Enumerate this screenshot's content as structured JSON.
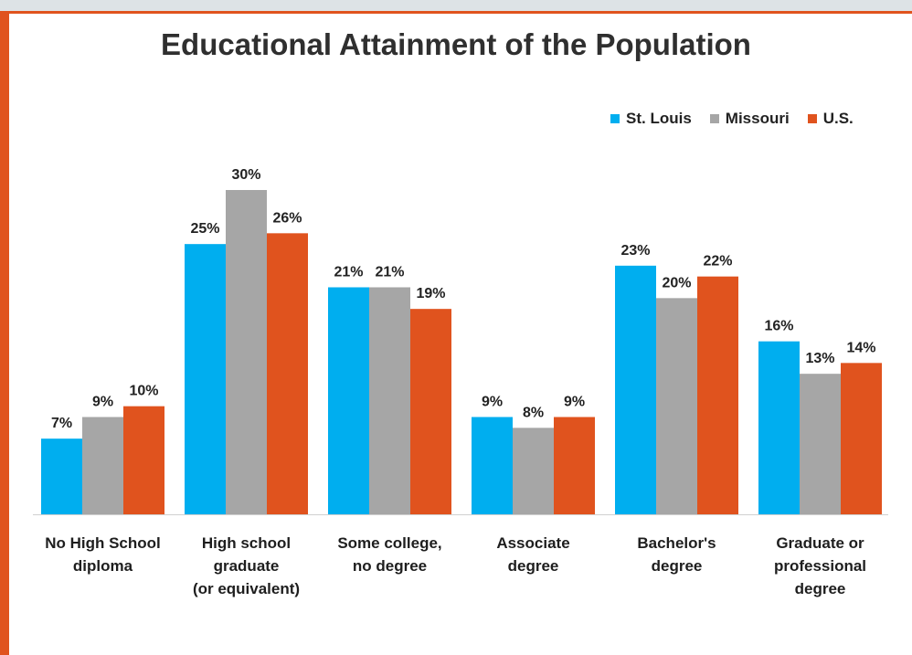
{
  "chart_data": {
    "type": "bar",
    "title": "Educational Attainment of the Population",
    "categories": [
      [
        "No High School",
        "diploma"
      ],
      [
        "High school",
        "graduate",
        "(or equivalent)"
      ],
      [
        "Some college,",
        "no degree"
      ],
      [
        "Associate",
        "degree"
      ],
      [
        "Bachelor's",
        "degree"
      ],
      [
        "Graduate or",
        "professional",
        "degree"
      ]
    ],
    "series": [
      {
        "name": "St. Louis",
        "color": "#00aeef",
        "values": [
          7,
          25,
          21,
          9,
          23,
          16
        ],
        "labels": [
          "7%",
          "25%",
          "21%",
          "9%",
          "23%",
          "16%"
        ]
      },
      {
        "name": "Missouri",
        "color": "#a6a6a6",
        "values": [
          9,
          30,
          21,
          8,
          20,
          13
        ],
        "labels": [
          "9%",
          "30%",
          "21%",
          "8%",
          "20%",
          "13%"
        ]
      },
      {
        "name": "U.S.",
        "color": "#e0531e",
        "values": [
          10,
          26,
          19,
          9,
          22,
          14
        ],
        "labels": [
          "10%",
          "26%",
          "19%",
          "9%",
          "22%",
          "14%"
        ]
      }
    ],
    "ylim": [
      0,
      30
    ],
    "xlabel": "",
    "ylabel": "",
    "grid": false,
    "legend": "top-right"
  }
}
